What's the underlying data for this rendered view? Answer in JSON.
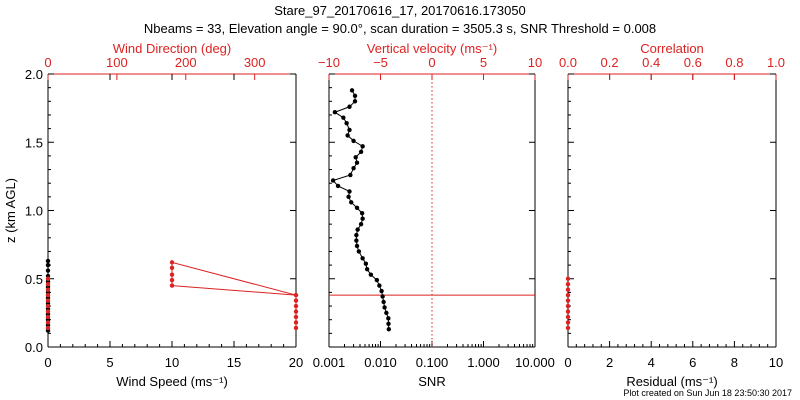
{
  "header": {
    "title": "Stare_97_20170616_17, 20170616.173050",
    "subtitle": "Nbeams = 33, Elevation angle = 90.0°, scan duration = 3505.3 s, SNR Threshold = 0.008"
  },
  "footer": {
    "credit": "Plot created on Sun Jun 18 23:50:30 2017"
  },
  "colors": {
    "primary": "#000000",
    "accent": "#dd2222"
  },
  "chart_data": [
    {
      "type": "scatter",
      "panel": "wind",
      "xlabel": "Wind Speed (ms⁻¹)",
      "x2label": "Wind Direction (deg)",
      "ylabel": "z (km AGL)",
      "xlim": [
        0,
        20
      ],
      "x2lim": [
        0,
        360
      ],
      "ylim": [
        0,
        2.0
      ],
      "xticks": [
        "0",
        "5",
        "10",
        "15",
        "20"
      ],
      "x2ticks": [
        "0",
        "100",
        "200",
        "300"
      ],
      "yticks": [
        "0.0",
        "0.5",
        "1.0",
        "1.5",
        "2.0"
      ],
      "series": [
        {
          "color": "#000000",
          "marker": "dot",
          "points": [
            [
              0,
              0.12
            ],
            [
              0,
              0.16
            ],
            [
              0,
              0.2
            ],
            [
              0,
              0.24
            ],
            [
              0,
              0.28
            ],
            [
              0,
              0.32
            ],
            [
              0,
              0.36
            ],
            [
              0,
              0.4
            ],
            [
              0,
              0.44
            ],
            [
              0,
              0.48
            ],
            [
              0,
              0.52
            ],
            [
              0,
              0.56
            ],
            [
              0,
              0.6
            ],
            [
              0,
              0.63
            ]
          ]
        },
        {
          "color": "#dd2222",
          "marker": "dot",
          "points": [
            [
              0,
              0.14
            ],
            [
              0,
              0.18
            ],
            [
              0,
              0.22
            ],
            [
              0,
              0.26
            ],
            [
              0,
              0.3
            ],
            [
              0,
              0.34
            ],
            [
              0,
              0.38
            ],
            [
              0,
              0.42
            ],
            [
              0,
              0.46
            ],
            [
              0,
              0.5
            ]
          ]
        },
        {
          "color": "#dd2222",
          "marker": "dot-line",
          "axis": "top",
          "points": [
            [
              180,
              0.45
            ],
            [
              180,
              0.49
            ],
            [
              180,
              0.53
            ],
            [
              180,
              0.58
            ],
            [
              180,
              0.62
            ],
            [
              360,
              0.38
            ],
            [
              360,
              0.34
            ],
            [
              360,
              0.3
            ],
            [
              360,
              0.26
            ],
            [
              360,
              0.22
            ],
            [
              360,
              0.18
            ],
            [
              360,
              0.14
            ]
          ]
        }
      ],
      "line": {
        "color": "#dd2222",
        "axis": "top",
        "points": [
          [
            180,
            0.45
          ],
          [
            360,
            0.38
          ]
        ]
      }
    },
    {
      "type": "line",
      "panel": "snr",
      "xlabel": "SNR",
      "x2label": "Vertical velocity (ms⁻¹)",
      "xscale": "log",
      "xlim": [
        0.001,
        10
      ],
      "x2lim": [
        -10,
        10
      ],
      "ylim": [
        0,
        2.0
      ],
      "xticks": [
        "0.001",
        "0.010",
        "0.100",
        "1.000",
        "10.000"
      ],
      "x2ticks": [
        "−10",
        "−5",
        "0",
        "5",
        "10"
      ],
      "series": [
        {
          "color": "#000000",
          "marker": "dot",
          "points": [
            [
              0.0145,
              0.13
            ],
            [
              0.0143,
              0.17
            ],
            [
              0.0142,
              0.21
            ],
            [
              0.013,
              0.25
            ],
            [
              0.012,
              0.29
            ],
            [
              0.0115,
              0.33
            ],
            [
              0.011,
              0.37
            ],
            [
              0.0105,
              0.41
            ],
            [
              0.0095,
              0.45
            ],
            [
              0.0085,
              0.49
            ],
            [
              0.0065,
              0.53
            ],
            [
              0.0055,
              0.57
            ],
            [
              0.0052,
              0.61
            ],
            [
              0.0045,
              0.65
            ],
            [
              0.0038,
              0.7
            ],
            [
              0.0035,
              0.74
            ],
            [
              0.0034,
              0.78
            ],
            [
              0.0034,
              0.82
            ],
            [
              0.0036,
              0.86
            ],
            [
              0.0042,
              0.9
            ],
            [
              0.0045,
              0.94
            ],
            [
              0.0044,
              0.98
            ],
            [
              0.0035,
              1.02
            ],
            [
              0.0027,
              1.06
            ],
            [
              0.0024,
              1.1
            ],
            [
              0.0025,
              1.14
            ],
            [
              0.0015,
              1.18
            ],
            [
              0.0012,
              1.22
            ],
            [
              0.0026,
              1.26
            ],
            [
              0.003,
              1.31
            ],
            [
              0.0035,
              1.35
            ],
            [
              0.0033,
              1.39
            ],
            [
              0.0042,
              1.43
            ],
            [
              0.0045,
              1.47
            ],
            [
              0.003,
              1.51
            ],
            [
              0.0023,
              1.55
            ],
            [
              0.0025,
              1.59
            ],
            [
              0.0022,
              1.64
            ],
            [
              0.0019,
              1.68
            ],
            [
              0.0013,
              1.72
            ],
            [
              0.0025,
              1.76
            ],
            [
              0.0032,
              1.8
            ],
            [
              0.0032,
              1.84
            ],
            [
              0.0028,
              1.88
            ]
          ]
        }
      ],
      "hline": {
        "y": 0.38,
        "color": "#dd2222"
      },
      "vline": {
        "x2": 0,
        "color": "#dd2222",
        "style": "dotted"
      }
    },
    {
      "type": "scatter",
      "panel": "residual",
      "xlabel": "Residual (ms⁻¹)",
      "x2label": "Correlation",
      "xlim": [
        0,
        10
      ],
      "x2lim": [
        0,
        1.0
      ],
      "ylim": [
        0,
        2.0
      ],
      "xticks": [
        "0",
        "2",
        "4",
        "6",
        "8",
        "10"
      ],
      "x2ticks": [
        "0.0",
        "0.2",
        "0.4",
        "0.6",
        "0.8",
        "1.0"
      ],
      "series": [
        {
          "color": "#dd2222",
          "marker": "dot",
          "points": [
            [
              0,
              0.14
            ],
            [
              0,
              0.18
            ],
            [
              0,
              0.22
            ],
            [
              0,
              0.26
            ],
            [
              0,
              0.3
            ],
            [
              0,
              0.34
            ],
            [
              0,
              0.38
            ],
            [
              0,
              0.42
            ],
            [
              0,
              0.46
            ],
            [
              0,
              0.5
            ]
          ]
        }
      ]
    }
  ]
}
